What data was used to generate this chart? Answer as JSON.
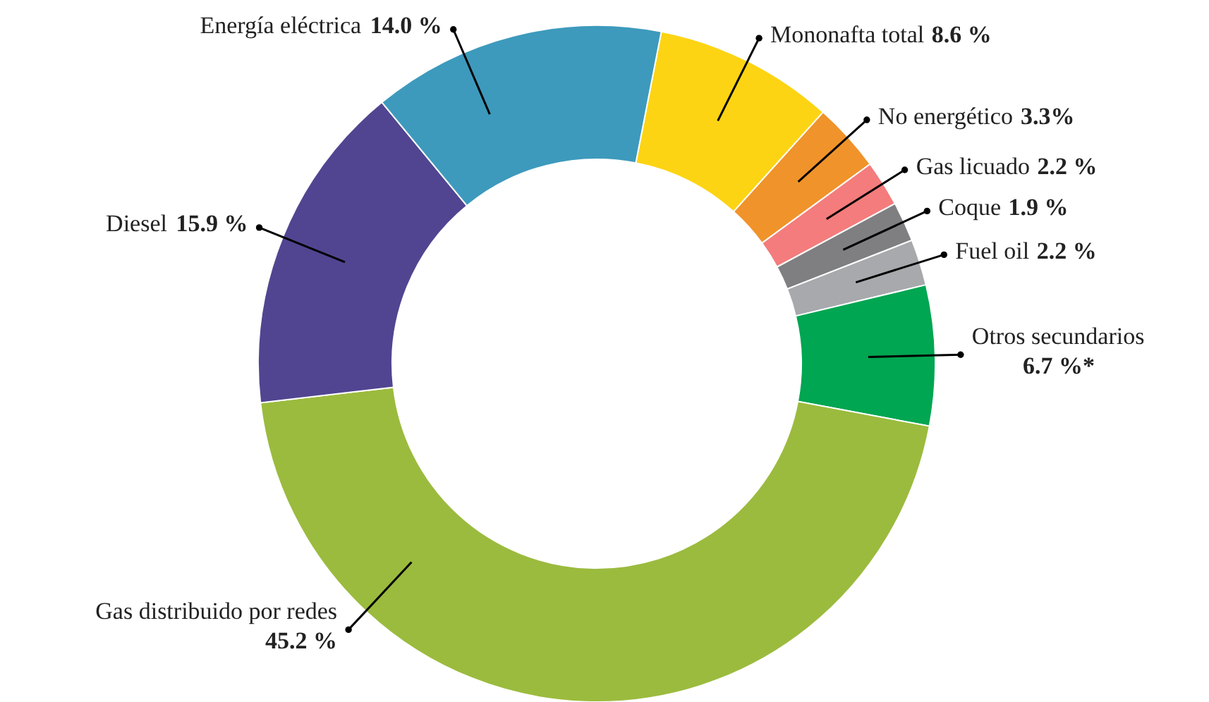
{
  "chart_data": {
    "type": "donut",
    "categories": [
      "Mononafta total",
      "No energético",
      "Gas licuado",
      "Coque",
      "Fuel oil",
      "Otros secundarios",
      "Gas distribuido por redes",
      "Diesel",
      "Energía eléctrica"
    ],
    "values": [
      8.6,
      3.3,
      2.2,
      1.9,
      2.2,
      6.7,
      45.2,
      15.9,
      14.0
    ],
    "colors": [
      "#fdd413",
      "#f0932a",
      "#f47c7c",
      "#7f7f82",
      "#a7a9ac",
      "#00a651",
      "#9bbb3e",
      "#514591",
      "#3d9abc"
    ],
    "value_labels": [
      "8.6 %",
      "3.3%",
      "2.2 %",
      "1.9 %",
      "2.2 %",
      "6.7 %*",
      "45.2 %",
      "15.9 %",
      "14.0 %"
    ]
  }
}
